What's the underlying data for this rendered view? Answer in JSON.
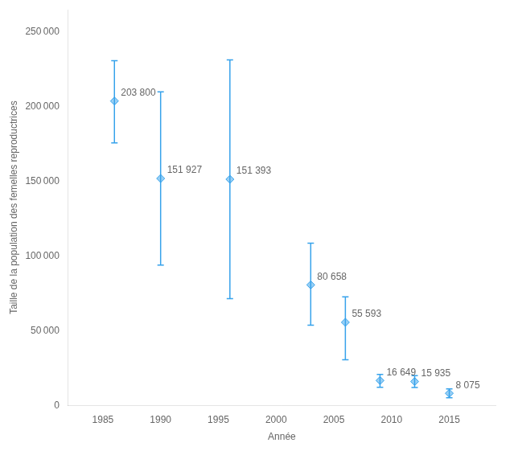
{
  "chart_data": {
    "type": "scatter",
    "marker": "diamond",
    "x": [
      1986,
      1990,
      1996,
      2003,
      2006,
      2009,
      2012,
      2015
    ],
    "values": [
      203800,
      151927,
      151393,
      80658,
      55593,
      16649,
      15935,
      8075
    ],
    "error_upper": [
      27000,
      58000,
      80000,
      28000,
      17000,
      4000,
      4000,
      3000
    ],
    "error_lower": [
      28000,
      58000,
      80000,
      27000,
      25000,
      4500,
      4000,
      3000
    ],
    "data_labels": true,
    "value_labels": [
      "203 800",
      "151 927",
      "151 393",
      "80 658",
      "55 593",
      "16 649",
      "15 935",
      "8 075"
    ],
    "xlabel": "Année",
    "ylabel": "Taille de la population des femelles reproductrices",
    "xlim": [
      1982,
      2019
    ],
    "ylim": [
      0,
      265000
    ],
    "xticks": [
      1985,
      1990,
      1995,
      2000,
      2005,
      2010,
      2015
    ],
    "yticks": [
      0,
      {
        "value": 50000,
        "label": "50 000"
      },
      {
        "value": 100000,
        "label": "100 000"
      },
      {
        "value": 150000,
        "label": "150 000"
      },
      {
        "value": 200000,
        "label": "200 000"
      },
      {
        "value": 250000,
        "label": "250 000"
      }
    ],
    "grid": false
  }
}
